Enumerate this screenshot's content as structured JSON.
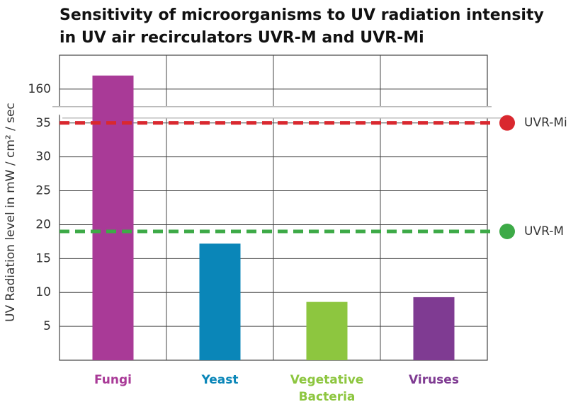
{
  "chart_data": {
    "type": "bar",
    "title": "Sensitivity of microorganisms to UV radiation intensity in UV air recirculators UVR-M and UVR-Mi",
    "y_label": "UV Radiation level in  mW / cm² / sec",
    "categories": [
      "Fungi",
      "Yeast",
      "Vegetative Bacteria",
      "Viruses"
    ],
    "values": [
      162,
      17.2,
      8.6,
      9.3
    ],
    "colors": [
      "#a93a97",
      "#0a86b8",
      "#8dc63f",
      "#7f3b92"
    ],
    "ylim": [
      0,
      165
    ],
    "yticks": [
      5,
      10,
      15,
      20,
      25,
      30,
      35,
      160
    ],
    "axis_break": {
      "from": 35,
      "to": 160
    },
    "grid": true,
    "thresholds": [
      {
        "name": "UVR-Mi",
        "value": 35.3,
        "color": "#d9282f"
      },
      {
        "name": "UVR-M",
        "value": 19,
        "color": "#3daa47"
      }
    ]
  }
}
